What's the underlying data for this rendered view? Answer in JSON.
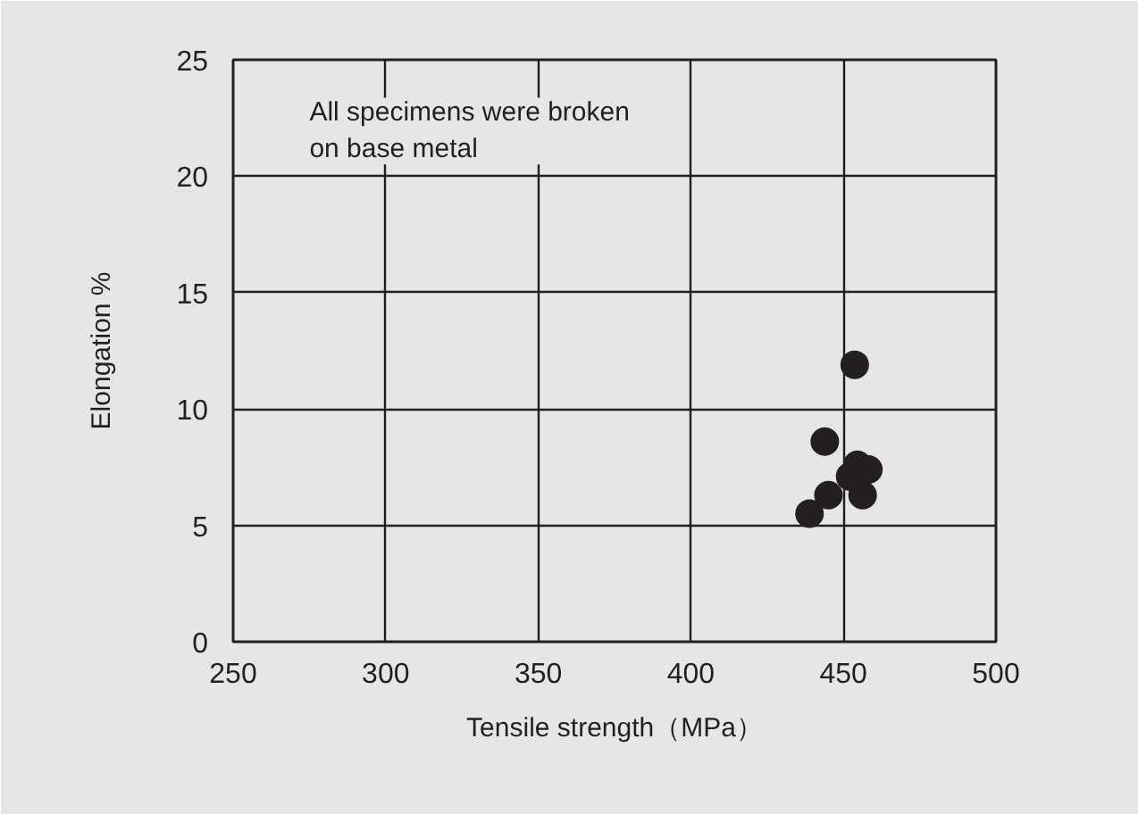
{
  "chart_data": {
    "type": "scatter",
    "xlabel": "Tensile strength（MPa）",
    "ylabel": "Elongation %",
    "x": [
      453.7,
      443.9,
      454.6,
      458.2,
      452.2,
      445.1,
      456.3,
      438.9
    ],
    "values": [
      11.9,
      8.6,
      7.6,
      7.4,
      7.1,
      6.3,
      6.3,
      5.5
    ],
    "color": "#231f20",
    "marker": "circle",
    "xlim": [
      250,
      500
    ],
    "xticks": [
      250,
      300,
      350,
      400,
      450,
      500
    ],
    "ylim": [
      0,
      25
    ],
    "yticks": [
      0,
      5,
      10,
      15,
      20,
      25
    ],
    "grid": true,
    "annotations": [
      "All specimens were broken\non base metal"
    ]
  }
}
